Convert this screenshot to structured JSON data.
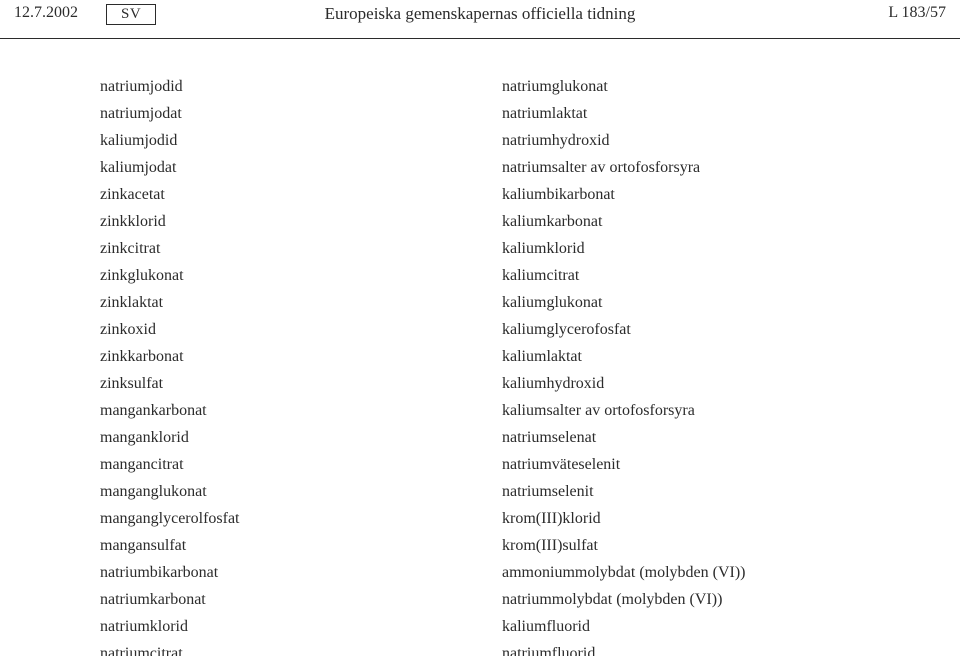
{
  "header": {
    "date": "12.7.2002",
    "lang": "SV",
    "title": "Europeiska gemenskapernas officiella tidning",
    "pageref": "L 183/57"
  },
  "left_col": [
    "natriumjodid",
    "natriumjodat",
    "kaliumjodid",
    "kaliumjodat",
    "zinkacetat",
    "zinkklorid",
    "zinkcitrat",
    "zinkglukonat",
    "zinklaktat",
    "zinkoxid",
    "zinkkarbonat",
    "zinksulfat",
    "mangankarbonat",
    "manganklorid",
    "mangancitrat",
    "manganglukonat",
    "manganglycerolfosfat",
    "mangansulfat",
    "natriumbikarbonat",
    "natriumkarbonat",
    "natriumklorid",
    "natriumcitrat"
  ],
  "right_col": [
    "natriumglukonat",
    "natriumlaktat",
    "natriumhydroxid",
    "natriumsalter av ortofosforsyra",
    "kaliumbikarbonat",
    "kaliumkarbonat",
    "kaliumklorid",
    "kaliumcitrat",
    "kaliumglukonat",
    "kaliumglycerofosfat",
    "kaliumlaktat",
    "kaliumhydroxid",
    "kaliumsalter av ortofosforsyra",
    "natriumselenat",
    "natriumväteselenit",
    "natriumselenit",
    "krom(III)klorid",
    "krom(III)sulfat",
    "ammoniummolybdat (molybden (VI))",
    "natriummolybdat (molybden (VI))",
    "kaliumfluorid",
    "natriumfluorid"
  ]
}
